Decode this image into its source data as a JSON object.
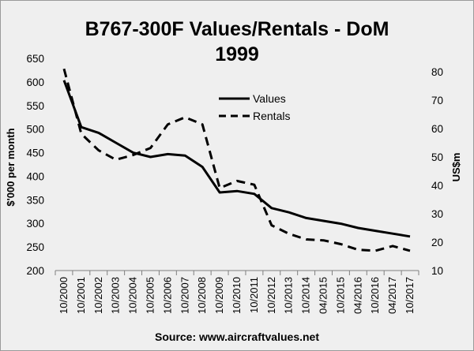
{
  "chart_data": {
    "type": "line",
    "title_line1": "B767-300F Values/Rentals - DoM",
    "title_line2": "1999",
    "ylabel_left": "$'000 per month",
    "ylabel_right": "US$m",
    "source": "Source: www.aircraftvalues.net",
    "legend_position": "top-center",
    "grid": false,
    "x": [
      "10/2000",
      "10/2001",
      "10/2002",
      "10/2003",
      "10/2004",
      "10/2005",
      "10/2006",
      "10/2007",
      "10/2008",
      "10/2009",
      "10/2010",
      "10/2011",
      "10/2012",
      "10/2013",
      "10/2014",
      "04/2015",
      "10/2015",
      "04/2016",
      "10/2016",
      "04/2017",
      "10/2017"
    ],
    "y_left": {
      "min": 200,
      "max": 650,
      "ticks": [
        200,
        250,
        300,
        350,
        400,
        450,
        500,
        550,
        600,
        650
      ]
    },
    "y_right": {
      "min": 10,
      "max": 80,
      "ticks": [
        10,
        20,
        30,
        40,
        50,
        60,
        70,
        80
      ]
    },
    "series": [
      {
        "name": "Values",
        "axis": "right",
        "style": "solid",
        "values": [
          77,
          60.5,
          58.5,
          55,
          51.5,
          50,
          51,
          50.5,
          46.5,
          37.5,
          38,
          37,
          32,
          30.5,
          28.5,
          27.5,
          26.5,
          25,
          24,
          23,
          22
        ]
      },
      {
        "name": "Rentals",
        "axis": "left",
        "style": "dashed",
        "values": [
          628,
          490,
          455,
          435,
          445,
          460,
          510,
          525,
          510,
          375,
          390,
          382,
          296,
          278,
          266,
          264,
          256,
          244,
          242,
          252,
          242
        ]
      }
    ]
  }
}
